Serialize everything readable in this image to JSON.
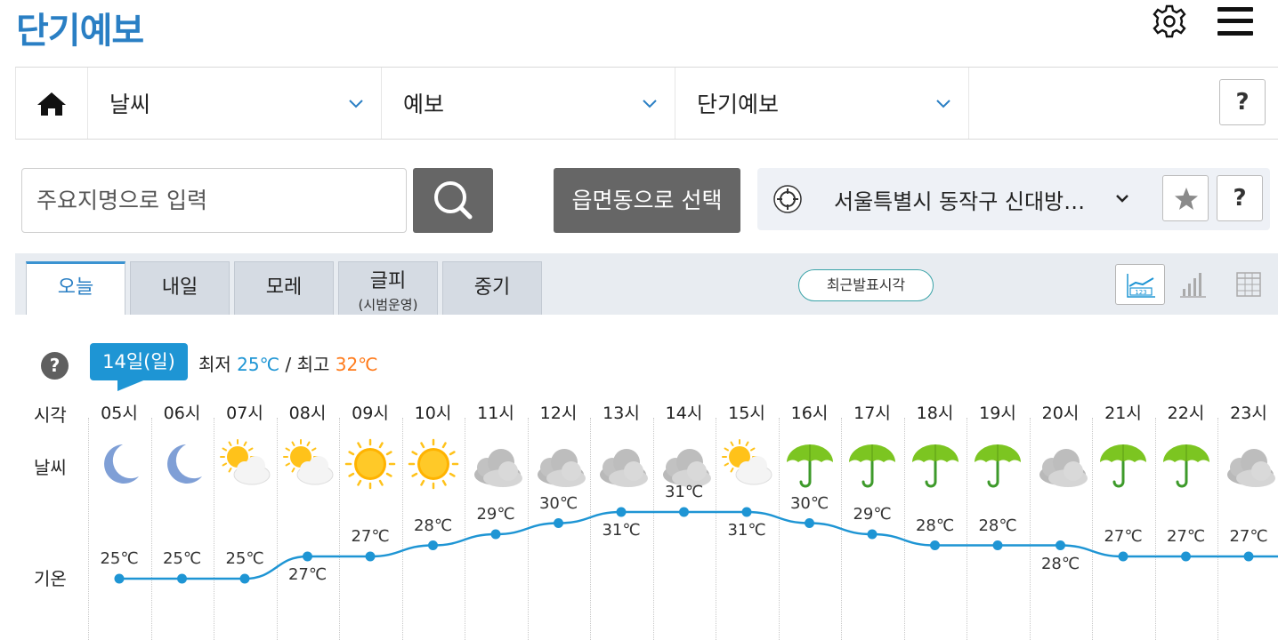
{
  "header": {
    "title": "단기예보",
    "settings_icon": "gear-icon",
    "menu_icon": "hamburger-menu-icon"
  },
  "breadcrumb": {
    "home_icon": "home-icon",
    "items": [
      {
        "label": "날씨"
      },
      {
        "label": "예보"
      },
      {
        "label": "단기예보"
      }
    ],
    "help_label": "?"
  },
  "search": {
    "placeholder": "주요지명으로 입력",
    "button_icon": "search-icon",
    "region_button": "읍면동으로 선택"
  },
  "location": {
    "text": "서울특별시 동작구 신대방…",
    "help_label": "?"
  },
  "tabs": [
    {
      "label": "오늘",
      "sub": "",
      "active": true
    },
    {
      "label": "내일",
      "sub": "",
      "active": false
    },
    {
      "label": "모레",
      "sub": "",
      "active": false
    },
    {
      "label": "글피",
      "sub": "(시범운영)",
      "active": false
    },
    {
      "label": "중기",
      "sub": "",
      "active": false
    }
  ],
  "recent_button": "최근발표시각",
  "forecast": {
    "help_label": "?",
    "date": "14일(일)",
    "min_label": "최저",
    "min_value": "25℃",
    "separator": "/",
    "max_label": "최고",
    "max_value": "32℃",
    "row_labels": {
      "time": "시각",
      "weather": "날씨",
      "temp": "기온"
    },
    "hours": [
      {
        "time": "05시",
        "icon": "moon",
        "temp": 25,
        "temp_label": "25℃"
      },
      {
        "time": "06시",
        "icon": "moon",
        "temp": 25,
        "temp_label": "25℃"
      },
      {
        "time": "07시",
        "icon": "partly-cloudy",
        "temp": 25,
        "temp_label": "25℃"
      },
      {
        "time": "08시",
        "icon": "partly-cloudy",
        "temp": 27,
        "temp_label": "27℃"
      },
      {
        "time": "09시",
        "icon": "sun",
        "temp": 27,
        "temp_label": "27℃"
      },
      {
        "time": "10시",
        "icon": "sun",
        "temp": 28,
        "temp_label": "28℃"
      },
      {
        "time": "11시",
        "icon": "cloudy",
        "temp": 29,
        "temp_label": "29℃"
      },
      {
        "time": "12시",
        "icon": "cloudy",
        "temp": 30,
        "temp_label": "30℃"
      },
      {
        "time": "13시",
        "icon": "cloudy",
        "temp": 31,
        "temp_label": "31℃"
      },
      {
        "time": "14시",
        "icon": "cloudy",
        "temp": 31,
        "temp_label": "31℃"
      },
      {
        "time": "15시",
        "icon": "partly-cloudy",
        "temp": 31,
        "temp_label": "31℃"
      },
      {
        "time": "16시",
        "icon": "umbrella",
        "temp": 30,
        "temp_label": "30℃"
      },
      {
        "time": "17시",
        "icon": "umbrella",
        "temp": 29,
        "temp_label": "29℃"
      },
      {
        "time": "18시",
        "icon": "umbrella",
        "temp": 28,
        "temp_label": "28℃"
      },
      {
        "time": "19시",
        "icon": "umbrella",
        "temp": 28,
        "temp_label": "28℃"
      },
      {
        "time": "20시",
        "icon": "cloudy",
        "temp": 28,
        "temp_label": "28℃"
      },
      {
        "time": "21시",
        "icon": "umbrella",
        "temp": 27,
        "temp_label": "27℃"
      },
      {
        "time": "22시",
        "icon": "umbrella",
        "temp": 27,
        "temp_label": "27℃"
      },
      {
        "time": "23시",
        "icon": "cloudy",
        "temp": 27,
        "temp_label": "27℃"
      }
    ]
  },
  "colors": {
    "accent": "#1e95d4",
    "title": "#2a7fc4",
    "max_temp": "#ff7a1a",
    "umbrella": "#7cc521"
  }
}
